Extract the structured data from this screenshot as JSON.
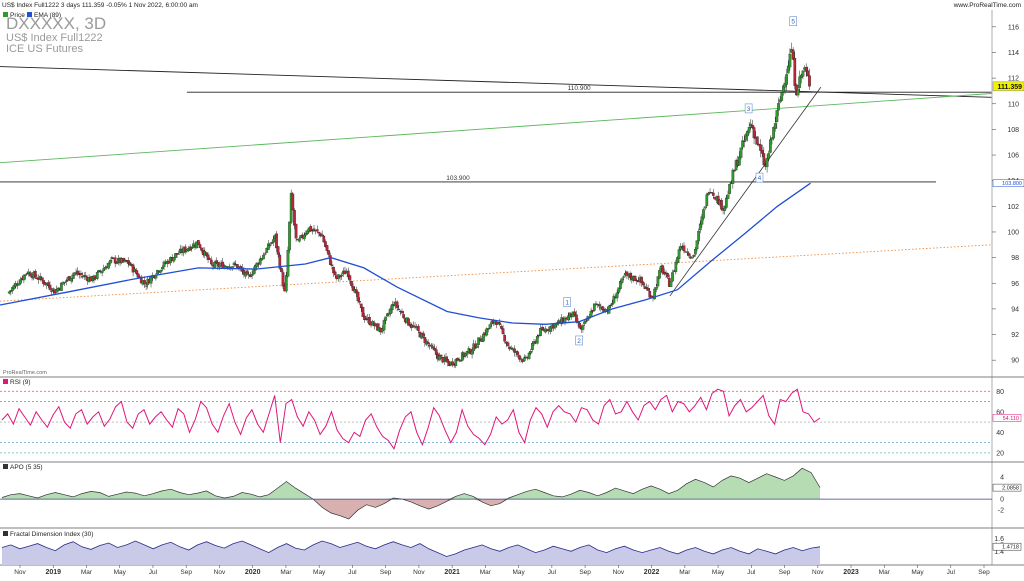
{
  "header": {
    "info": "US$ Index Full1222 3 days 111.359 -0.05% 1 Nov 2022, 6:00:00 am",
    "url": "www.ProRealTime.com",
    "watermark_symbol": "DXXXXX, 3D",
    "watermark_name": "US$ Index Full1222",
    "watermark_exchange": "ICE US Futures",
    "credit": "ProRealTime.com"
  },
  "legend": {
    "price_label": "Price",
    "ema_label": "EMA (89)",
    "rsi_label": "RSI (9)",
    "apo_label": "APO (5 35)",
    "fdi_label": "Fractal Dimension Index (30)"
  },
  "colors": {
    "up": "#2e9a2e",
    "down": "#b8263a",
    "ema": "#1f4fd6",
    "rsi": "#e0167a",
    "apo_fill_pos": "#b6dcb4",
    "apo_fill_neg": "#d9b0b0",
    "fdi": "#2a2a8a",
    "fdi_fill": "#c9c9e8",
    "price_tag": "#f2f200"
  },
  "time_axis": {
    "labels": [
      "Nov",
      "2019",
      "Mar",
      "May",
      "Jul",
      "Sep",
      "Nov",
      "2020",
      "Mar",
      "May",
      "Jul",
      "Sep",
      "Nov",
      "2021",
      "Mar",
      "May",
      "Jul",
      "Sep",
      "Nov",
      "2022",
      "Mar",
      "May",
      "Jul",
      "Sep",
      "Nov",
      "2023",
      "Mar",
      "May",
      "Jul",
      "Sep"
    ]
  },
  "chart_data": [
    {
      "type": "candlestick",
      "name": "price",
      "title": "US$ Index Full1222",
      "ylim": [
        89,
        117
      ],
      "y_ticks": [
        90,
        92,
        94,
        96,
        98,
        100,
        102,
        104,
        106,
        108,
        110,
        112,
        114,
        116
      ],
      "last_value": "111.359",
      "ema_value": "103.800",
      "close_path": [
        {
          "d": "2018-10-15",
          "v": 95.2
        },
        {
          "d": "2018-11-20",
          "v": 96.9
        },
        {
          "d": "2018-12-15",
          "v": 96.3
        },
        {
          "d": "2019-01-10",
          "v": 95.4
        },
        {
          "d": "2019-02-15",
          "v": 96.8
        },
        {
          "d": "2019-03-20",
          "v": 96.3
        },
        {
          "d": "2019-04-25",
          "v": 97.8
        },
        {
          "d": "2019-05-25",
          "v": 97.6
        },
        {
          "d": "2019-06-25",
          "v": 95.9
        },
        {
          "d": "2019-07-20",
          "v": 97.1
        },
        {
          "d": "2019-08-20",
          "v": 98.2
        },
        {
          "d": "2019-09-30",
          "v": 99.2
        },
        {
          "d": "2019-10-25",
          "v": 97.4
        },
        {
          "d": "2019-12-10",
          "v": 97.4
        },
        {
          "d": "2019-12-31",
          "v": 96.4
        },
        {
          "d": "2020-02-19",
          "v": 99.6
        },
        {
          "d": "2020-03-09",
          "v": 95.0
        },
        {
          "d": "2020-03-20",
          "v": 102.8
        },
        {
          "d": "2020-03-30",
          "v": 99.0
        },
        {
          "d": "2020-04-20",
          "v": 100.3
        },
        {
          "d": "2020-05-15",
          "v": 99.8
        },
        {
          "d": "2020-06-10",
          "v": 96.3
        },
        {
          "d": "2020-07-01",
          "v": 97.0
        },
        {
          "d": "2020-07-31",
          "v": 93.4
        },
        {
          "d": "2020-09-01",
          "v": 92.3
        },
        {
          "d": "2020-09-25",
          "v": 94.5
        },
        {
          "d": "2020-10-20",
          "v": 93.0
        },
        {
          "d": "2020-11-05",
          "v": 92.4
        },
        {
          "d": "2020-12-15",
          "v": 90.3
        },
        {
          "d": "2021-01-06",
          "v": 89.7
        },
        {
          "d": "2021-02-15",
          "v": 90.8
        },
        {
          "d": "2021-03-31",
          "v": 93.2
        },
        {
          "d": "2021-04-25",
          "v": 91.0
        },
        {
          "d": "2021-05-25",
          "v": 89.9
        },
        {
          "d": "2021-06-20",
          "v": 92.2
        },
        {
          "d": "2021-07-25",
          "v": 92.9
        },
        {
          "d": "2021-08-20",
          "v": 93.6
        },
        {
          "d": "2021-09-05",
          "v": 92.3
        },
        {
          "d": "2021-09-30",
          "v": 94.3
        },
        {
          "d": "2021-10-25",
          "v": 93.9
        },
        {
          "d": "2021-11-24",
          "v": 96.6
        },
        {
          "d": "2021-12-20",
          "v": 96.3
        },
        {
          "d": "2022-01-14",
          "v": 94.9
        },
        {
          "d": "2022-01-30",
          "v": 97.2
        },
        {
          "d": "2022-02-15",
          "v": 95.9
        },
        {
          "d": "2022-03-07",
          "v": 99.0
        },
        {
          "d": "2022-03-30",
          "v": 98.0
        },
        {
          "d": "2022-04-28",
          "v": 103.5
        },
        {
          "d": "2022-05-25",
          "v": 101.8
        },
        {
          "d": "2022-06-15",
          "v": 105.0
        },
        {
          "d": "2022-07-14",
          "v": 108.5
        },
        {
          "d": "2022-08-10",
          "v": 105.0
        },
        {
          "d": "2022-08-30",
          "v": 109.0
        },
        {
          "d": "2022-09-27",
          "v": 114.3
        },
        {
          "d": "2022-10-05",
          "v": 111.0
        },
        {
          "d": "2022-10-20",
          "v": 112.8
        },
        {
          "d": "2022-11-01",
          "v": 111.36
        }
      ],
      "ema89": [
        {
          "d": "2018-10-01",
          "v": 94.3
        },
        {
          "d": "2019-02-01",
          "v": 95.3
        },
        {
          "d": "2019-06-01",
          "v": 96.3
        },
        {
          "d": "2019-10-01",
          "v": 97.2
        },
        {
          "d": "2020-01-15",
          "v": 97.1
        },
        {
          "d": "2020-04-15",
          "v": 97.5
        },
        {
          "d": "2020-06-01",
          "v": 98.0
        },
        {
          "d": "2020-08-01",
          "v": 97.2
        },
        {
          "d": "2020-10-01",
          "v": 95.7
        },
        {
          "d": "2021-01-01",
          "v": 93.8
        },
        {
          "d": "2021-03-01",
          "v": 93.3
        },
        {
          "d": "2021-05-01",
          "v": 92.9
        },
        {
          "d": "2021-07-01",
          "v": 92.8
        },
        {
          "d": "2021-09-01",
          "v": 93.0
        },
        {
          "d": "2021-11-01",
          "v": 94.0
        },
        {
          "d": "2022-01-01",
          "v": 94.7
        },
        {
          "d": "2022-03-01",
          "v": 95.5
        },
        {
          "d": "2022-05-01",
          "v": 97.7
        },
        {
          "d": "2022-07-01",
          "v": 99.8
        },
        {
          "d": "2022-09-01",
          "v": 102.0
        },
        {
          "d": "2022-11-01",
          "v": 103.8
        }
      ],
      "hlines": [
        {
          "label": "110.900",
          "y": 110.9,
          "from": "2019-09-10",
          "to": "2023-09-30"
        },
        {
          "label": "103.900",
          "y": 103.9,
          "from": "2018-10-01",
          "to": "2023-06-20"
        }
      ],
      "trendlines": [
        {
          "style": "black",
          "from": {
            "d": "2018-10-01",
            "v": 112.9
          },
          "to": {
            "d": "2023-09-30",
            "v": 110.5
          }
        },
        {
          "style": "green",
          "from": {
            "d": "2018-10-01",
            "v": 105.4
          },
          "to": {
            "d": "2023-09-30",
            "v": 110.8
          }
        },
        {
          "style": "orange-dotted",
          "from": {
            "d": "2018-10-01",
            "v": 94.6
          },
          "to": {
            "d": "2023-09-30",
            "v": 99.0
          }
        },
        {
          "style": "black-thin",
          "from": {
            "d": "2022-02-15",
            "v": 95.0
          },
          "to": {
            "d": "2022-11-20",
            "v": 111.3
          }
        }
      ],
      "wave_labels": [
        {
          "label": "1",
          "d": "2021-08-10",
          "v": 94.5
        },
        {
          "label": "2",
          "d": "2021-09-01",
          "v": 91.5
        },
        {
          "label": "3",
          "d": "2022-07-10",
          "v": 109.6
        },
        {
          "label": "4",
          "d": "2022-07-30",
          "v": 104.2
        },
        {
          "label": "5",
          "d": "2022-09-30",
          "v": 116.4
        }
      ]
    },
    {
      "type": "line",
      "name": "RSI (9)",
      "ylim": [
        15,
        90
      ],
      "y_ticks": [
        20,
        40,
        60,
        80
      ],
      "levels": [
        80,
        70,
        50,
        30,
        20
      ],
      "last_value": "54.110",
      "values": [
        52,
        58,
        48,
        63,
        55,
        47,
        60,
        52,
        45,
        57,
        65,
        50,
        44,
        58,
        62,
        48,
        55,
        60,
        46,
        53,
        65,
        70,
        50,
        44,
        58,
        62,
        48,
        55,
        60,
        52,
        45,
        63,
        58,
        40,
        52,
        70,
        64,
        48,
        40,
        56,
        68,
        50,
        38,
        54,
        62,
        48,
        40,
        58,
        76,
        30,
        68,
        72,
        55,
        46,
        60,
        52,
        38,
        46,
        60,
        42,
        34,
        30,
        40,
        36,
        52,
        58,
        45,
        36,
        32,
        24,
        42,
        55,
        60,
        40,
        28,
        44,
        64,
        56,
        42,
        30,
        40,
        62,
        46,
        38,
        34,
        28,
        38,
        55,
        48,
        52,
        62,
        40,
        30,
        52,
        64,
        58,
        45,
        60,
        66,
        60,
        58,
        50,
        64,
        62,
        52,
        48,
        66,
        72,
        58,
        60,
        70,
        60,
        52,
        66,
        70,
        62,
        72,
        76,
        60,
        70,
        68,
        60,
        66,
        74,
        62,
        78,
        82,
        80,
        56,
        66,
        72,
        60,
        64,
        70,
        76,
        56,
        48,
        72,
        70,
        78,
        82,
        60,
        58,
        50,
        54
      ]
    },
    {
      "type": "area",
      "name": "APO (5 35)",
      "ylim": [
        -4.5,
        6
      ],
      "y_ticks": [
        -2,
        0,
        2,
        4
      ],
      "tick_labels": [
        "-2",
        "0",
        "2",
        "4"
      ],
      "last_value": "2.0858",
      "values": [
        0.3,
        0.8,
        1.0,
        0.6,
        0.2,
        0.8,
        1.2,
        0.8,
        0.4,
        1.0,
        1.4,
        1.2,
        0.5,
        0.9,
        1.3,
        1.1,
        0.6,
        1.0,
        1.5,
        1.8,
        1.2,
        0.8,
        1.1,
        1.5,
        0.6,
        0.2,
        0.5,
        1.2,
        0.9,
        0.4,
        0.8,
        2.0,
        3.2,
        2.0,
        1.0,
        0.0,
        -1.5,
        -2.5,
        -3.0,
        -3.6,
        -2.0,
        -1.0,
        -1.5,
        -0.8,
        0.2,
        0.0,
        -0.5,
        -1.2,
        -1.8,
        -1.2,
        -0.4,
        0.5,
        1.0,
        0.5,
        -0.5,
        -1.2,
        -0.8,
        0.2,
        0.8,
        1.4,
        1.8,
        1.2,
        0.6,
        0.4,
        0.9,
        1.6,
        1.2,
        0.6,
        1.2,
        2.0,
        1.5,
        1.0,
        1.8,
        2.4,
        1.8,
        1.0,
        1.6,
        2.8,
        3.6,
        3.0,
        2.2,
        3.4,
        4.2,
        3.8,
        3.0,
        3.8,
        4.6,
        4.0,
        3.4,
        4.2,
        5.6,
        4.8,
        2.1
      ]
    },
    {
      "type": "area",
      "name": "Fractal Dimension Index (30)",
      "ylim": [
        1.25,
        1.7
      ],
      "y_ticks": [
        1.4,
        1.5,
        1.6
      ],
      "tick_labels": [
        "1.4",
        "1.5",
        "1.6"
      ],
      "last_value": "1.4718",
      "values": [
        1.46,
        1.5,
        1.44,
        1.48,
        1.52,
        1.46,
        1.41,
        1.5,
        1.55,
        1.47,
        1.43,
        1.49,
        1.53,
        1.46,
        1.5,
        1.56,
        1.5,
        1.44,
        1.5,
        1.54,
        1.47,
        1.42,
        1.5,
        1.55,
        1.49,
        1.45,
        1.52,
        1.56,
        1.5,
        1.44,
        1.38,
        1.46,
        1.52,
        1.45,
        1.42,
        1.5,
        1.56,
        1.52,
        1.46,
        1.5,
        1.54,
        1.48,
        1.44,
        1.5,
        1.55,
        1.5,
        1.46,
        1.52,
        1.44,
        1.38,
        1.32,
        1.36,
        1.42,
        1.46,
        1.5,
        1.44,
        1.4,
        1.46,
        1.5,
        1.44,
        1.38,
        1.42,
        1.48,
        1.44,
        1.4,
        1.46,
        1.5,
        1.42,
        1.38,
        1.44,
        1.48,
        1.42,
        1.38,
        1.42,
        1.46,
        1.4,
        1.36,
        1.42,
        1.46,
        1.4,
        1.36,
        1.42,
        1.46,
        1.4,
        1.36,
        1.44,
        1.4,
        1.36,
        1.42,
        1.46,
        1.41,
        1.45,
        1.47
      ]
    }
  ]
}
